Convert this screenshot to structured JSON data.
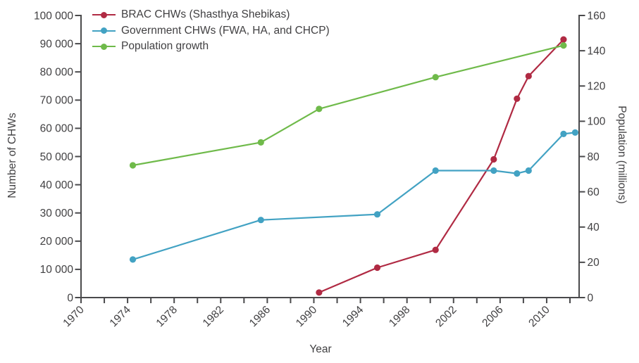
{
  "figure": {
    "background": "#ffffff",
    "text_color": "#414042",
    "axis_color": "#4a4a4c"
  },
  "chart_data": {
    "type": "line",
    "title": "",
    "xlabel": "Year",
    "ylabel_left": "Number of CHWs",
    "ylabel_right": "Population (millions)",
    "grid": false,
    "legend_position": "top-left",
    "x_axis": {
      "min": 1970,
      "max": 2012,
      "minor_tick_step": 2,
      "labeled_ticks": [
        1970,
        1974,
        1978,
        1982,
        1986,
        1990,
        1994,
        1998,
        2002,
        2006,
        2010
      ]
    },
    "y_axis_left": {
      "min": 0,
      "max": 100000,
      "tick_step": 10000,
      "tick_labels": [
        "0",
        "10 000",
        "20 000",
        "30 000",
        "40 000",
        "50 000",
        "60 000",
        "70 000",
        "80 000",
        "90 000",
        "100 000"
      ]
    },
    "y_axis_right": {
      "min": 0,
      "max": 160,
      "tick_step": 20,
      "tick_labels": [
        "0",
        "20",
        "40",
        "60",
        "80",
        "100",
        "120",
        "140",
        "160"
      ]
    },
    "series": [
      {
        "name": "BRAC CHWs (Shasthya Shebikas)",
        "color": "#B02A43",
        "axis": "left",
        "points": [
          [
            1990,
            1800
          ],
          [
            1995,
            10600
          ],
          [
            2000,
            16900
          ],
          [
            2005,
            49000
          ],
          [
            2007,
            70500
          ],
          [
            2008,
            78500
          ],
          [
            2011,
            91500
          ]
        ]
      },
      {
        "name": "Government CHWs (FWA, HA, and CHCP)",
        "color": "#42A2C3",
        "axis": "left",
        "points": [
          [
            1974,
            13500
          ],
          [
            1985,
            27500
          ],
          [
            1995,
            29500
          ],
          [
            2000,
            45000
          ],
          [
            2005,
            45000
          ],
          [
            2007,
            44000
          ],
          [
            2008,
            45000
          ],
          [
            2011,
            58000
          ],
          [
            2012,
            58500
          ]
        ]
      },
      {
        "name": "Population growth",
        "color": "#6FBA4A",
        "axis": "right",
        "points": [
          [
            1974,
            75
          ],
          [
            1985,
            88
          ],
          [
            1990,
            107
          ],
          [
            2000,
            125
          ],
          [
            2011,
            143
          ]
        ]
      }
    ]
  }
}
